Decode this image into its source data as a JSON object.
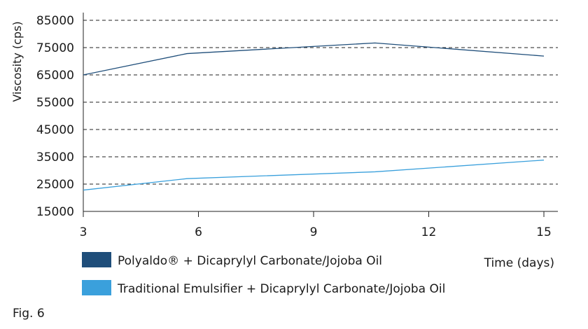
{
  "figure_label": "Fig. 6",
  "chart_data": {
    "type": "line",
    "xlabel": "Time (days)",
    "ylabel": "Viscosity (cps)",
    "xlim": [
      3,
      15
    ],
    "ylim": [
      15000,
      85000
    ],
    "xticks": [
      "3",
      "6",
      "9",
      "12",
      "15"
    ],
    "yticks": [
      "15000",
      "25000",
      "35000",
      "45000",
      "55000",
      "65000",
      "75000",
      "85000"
    ],
    "grid": "horizontal dashed",
    "legend_position": "bottom",
    "series": [
      {
        "name": "Polyaldo® + Dicaprylyl Carbonate/Jojoba Oil",
        "color": "#1f4e7a",
        "x": [
          3,
          5.7,
          10.6,
          15
        ],
        "y": [
          65000,
          72800,
          76700,
          71900
        ]
      },
      {
        "name": "Traditional Emulsifier + Dicaprylyl Carbonate/Jojoba Oil",
        "color": "#3aa0dc",
        "x": [
          3,
          5.7,
          10.6,
          15
        ],
        "y": [
          22800,
          27000,
          29500,
          33800
        ]
      }
    ]
  }
}
